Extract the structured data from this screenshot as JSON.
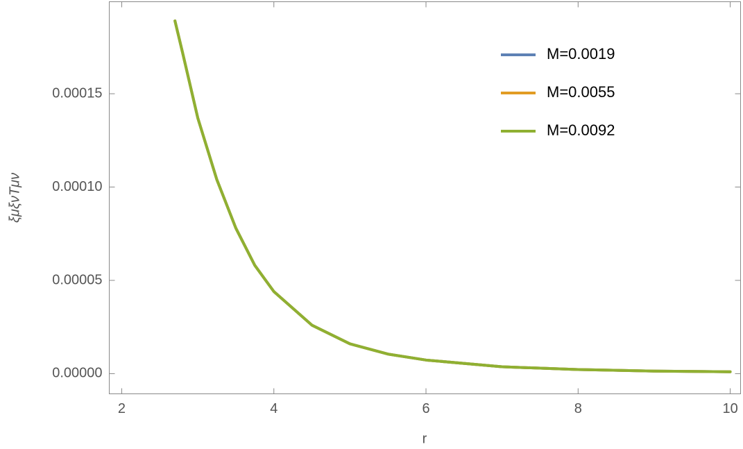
{
  "chart_data": {
    "type": "line",
    "xlabel": "r",
    "ylabel": "ξμξνTμν",
    "x": [
      2.7,
      2.8,
      3,
      3.25,
      3.5,
      3.75,
      4,
      4.5,
      5,
      5.5,
      6,
      7,
      8,
      9,
      10
    ],
    "series": [
      {
        "name": "M=0.0019",
        "color": "#5e81b5",
        "values": [
          0.000189,
          0.000172,
          0.000137,
          0.000104,
          7.8e-05,
          5.8e-05,
          4.4e-05,
          2.6e-05,
          1.6e-05,
          1.05e-05,
          7.3e-06,
          3.7e-06,
          2.2e-06,
          1.4e-06,
          1e-06
        ]
      },
      {
        "name": "M=0.0055",
        "color": "#e19c24",
        "values": [
          0.000189,
          0.000172,
          0.000137,
          0.000104,
          7.8e-05,
          5.8e-05,
          4.4e-05,
          2.6e-05,
          1.6e-05,
          1.05e-05,
          7.3e-06,
          3.7e-06,
          2.2e-06,
          1.4e-06,
          1e-06
        ]
      },
      {
        "name": "M=0.0092",
        "color": "#8fb032",
        "values": [
          0.000189,
          0.000172,
          0.000137,
          0.000104,
          7.8e-05,
          5.8e-05,
          4.4e-05,
          2.6e-05,
          1.6e-05,
          1.05e-05,
          7.3e-06,
          3.7e-06,
          2.2e-06,
          1.4e-06,
          1e-06
        ]
      }
    ],
    "xlim": [
      1.836,
      10.136
    ],
    "xticks": [
      2,
      4,
      6,
      8,
      10
    ],
    "ylim": [
      -1.08e-05,
      0.0001993
    ],
    "yticks": [
      {
        "value": 0,
        "label": "0.00000"
      },
      {
        "value": 5e-05,
        "label": "0.00005"
      },
      {
        "value": 0.0001,
        "label": "0.00010"
      },
      {
        "value": 0.00015,
        "label": "0.00015"
      }
    ],
    "legend": "top-right",
    "grid": false
  }
}
